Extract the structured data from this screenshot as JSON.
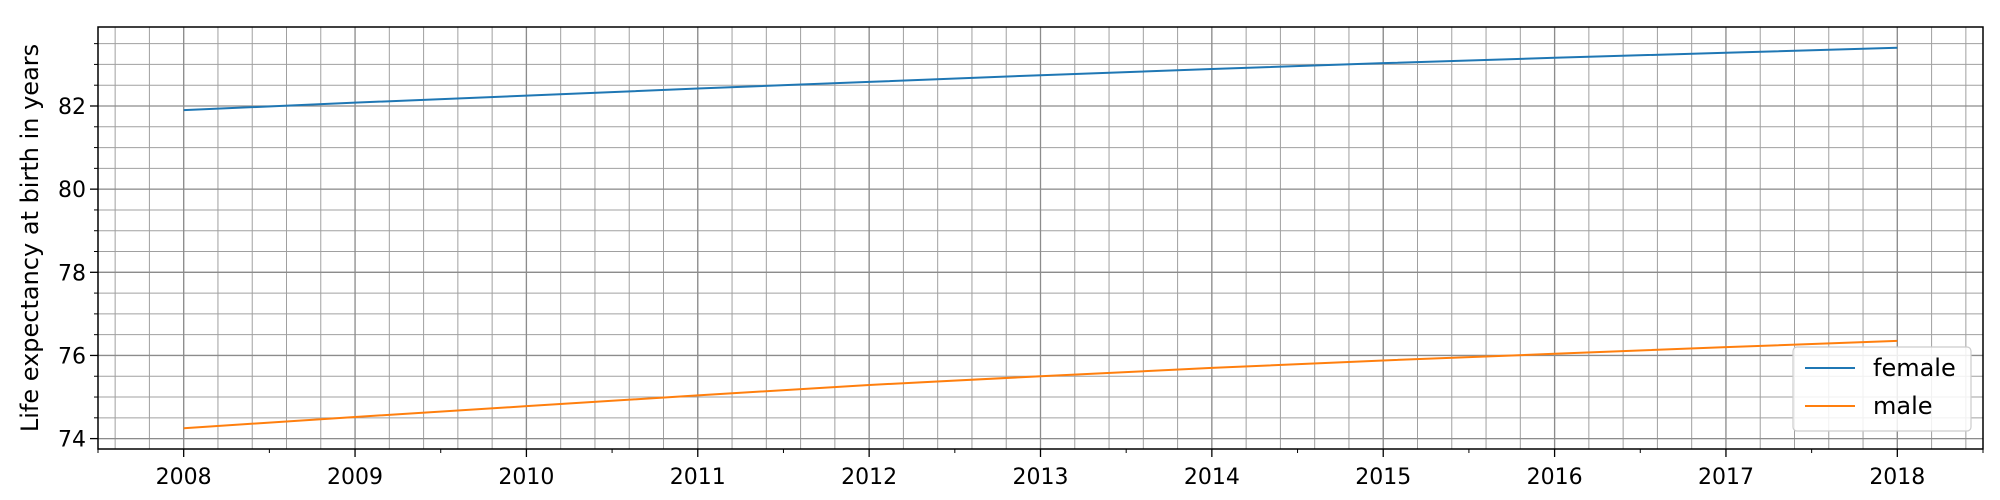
{
  "chart_data": {
    "type": "line",
    "title": "",
    "xlabel": "",
    "ylabel": "Life expectancy at birth in years",
    "x": [
      2008,
      2009,
      2010,
      2011,
      2012,
      2013,
      2014,
      2015,
      2016,
      2017,
      2018
    ],
    "x_ticks": [
      "2008",
      "2009",
      "2010",
      "2011",
      "2012",
      "2013",
      "2014",
      "2015",
      "2016",
      "2017",
      "2018"
    ],
    "y_ticks": [
      "74",
      "76",
      "78",
      "80",
      "82"
    ],
    "xlim": [
      2007.5,
      2018.5
    ],
    "ylim": [
      73.75,
      83.9
    ],
    "grid": true,
    "minor_grid": true,
    "legend_position": "bottom-right",
    "series": [
      {
        "name": "female",
        "color": "#1f77b4",
        "values": [
          81.9,
          82.08,
          82.25,
          82.42,
          82.58,
          82.74,
          82.89,
          83.03,
          83.16,
          83.28,
          83.4
        ]
      },
      {
        "name": "male",
        "color": "#ff7f0e",
        "values": [
          74.25,
          74.52,
          74.78,
          75.04,
          75.29,
          75.5,
          75.7,
          75.88,
          76.04,
          76.2,
          76.35
        ]
      }
    ]
  }
}
